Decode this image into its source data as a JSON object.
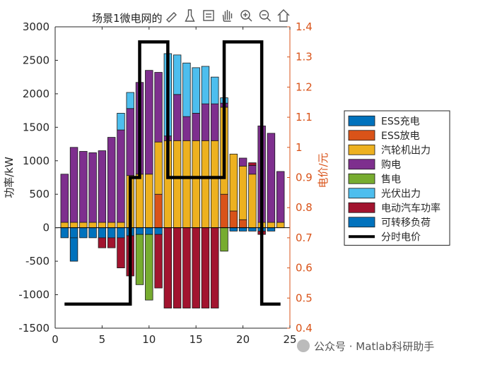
{
  "toolbar": {
    "icons": [
      "edit-icon",
      "brush-icon",
      "datatip-icon",
      "pan-icon",
      "zoom-in-icon",
      "zoom-out-icon",
      "home-icon"
    ]
  },
  "watermark": "公众号 · Matlab科研助手",
  "chart_data": {
    "type": "bar",
    "title": "场景1微电网的",
    "ylabel": "功率/kW",
    "y2label": "电价/元",
    "xlim": [
      0,
      25
    ],
    "ylim": [
      -1500,
      3000
    ],
    "y2lim": [
      0.4,
      1.4
    ],
    "xticks": [
      "0",
      "5",
      "10",
      "15",
      "20",
      "25"
    ],
    "yticks": [
      "-1500",
      "-1000",
      "-500",
      "0",
      "500",
      "1000",
      "1500",
      "2000",
      "2500",
      "3000"
    ],
    "y2ticks": [
      "0.4",
      "0.5",
      "0.6",
      "0.7",
      "0.8",
      "0.9",
      "1",
      "1.1",
      "1.2",
      "1.3",
      "1.4"
    ],
    "legend_position": "right",
    "x": [
      1,
      2,
      3,
      4,
      5,
      6,
      7,
      8,
      9,
      10,
      11,
      12,
      13,
      14,
      15,
      16,
      17,
      18,
      19,
      20,
      21,
      22,
      23,
      24
    ],
    "series": [
      {
        "name": "ESS充电",
        "color": "#0072BD",
        "values": [
          -150,
          -150,
          -150,
          -150,
          -150,
          -150,
          -150,
          -120,
          -100,
          -100,
          -100,
          0,
          0,
          0,
          0,
          0,
          0,
          0,
          -50,
          -50,
          -50,
          -50,
          -50,
          0
        ]
      },
      {
        "name": "ESS放电",
        "color": "#D95319",
        "values": [
          0,
          0,
          0,
          0,
          0,
          0,
          0,
          0,
          0,
          0,
          500,
          0,
          0,
          0,
          0,
          0,
          0,
          500,
          250,
          120,
          0,
          0,
          0,
          0
        ]
      },
      {
        "name": "汽轮机出力",
        "color": "#EDB120",
        "values": [
          80,
          80,
          80,
          80,
          80,
          80,
          80,
          780,
          800,
          800,
          780,
          1300,
          1300,
          1300,
          1300,
          1300,
          1300,
          1300,
          850,
          800,
          800,
          80,
          80,
          80
        ]
      },
      {
        "name": "购电",
        "color": "#7E2F8E",
        "values": [
          720,
          1120,
          1060,
          1040,
          1070,
          1270,
          1380,
          1000,
          1370,
          1550,
          1040,
          70,
          690,
          360,
          410,
          550,
          550,
          60,
          0,
          120,
          130,
          1440,
          1330,
          760
        ]
      },
      {
        "name": "售电",
        "color": "#77AC30",
        "values": [
          0,
          0,
          0,
          0,
          0,
          0,
          0,
          0,
          -750,
          -980,
          0,
          0,
          0,
          0,
          0,
          0,
          0,
          -350,
          0,
          0,
          0,
          0,
          0,
          0
        ]
      },
      {
        "name": "光伏出力",
        "color": "#4DBEEE",
        "values": [
          0,
          0,
          0,
          0,
          0,
          0,
          250,
          240,
          0,
          0,
          0,
          1230,
          590,
          800,
          680,
          560,
          400,
          80,
          0,
          0,
          0,
          0,
          0,
          0
        ]
      },
      {
        "name": "电动汽车功率",
        "color": "#A2142F",
        "values": [
          0,
          0,
          0,
          0,
          -150,
          -150,
          -450,
          -600,
          0,
          0,
          -800,
          -1200,
          -1200,
          -1200,
          -1200,
          -1200,
          -1200,
          0,
          0,
          0,
          40,
          -50,
          0,
          0
        ]
      },
      {
        "name": "可转移负荷",
        "color": "#0072BD",
        "values": [
          0,
          -350,
          0,
          0,
          0,
          0,
          0,
          0,
          0,
          0,
          0,
          0,
          0,
          0,
          0,
          0,
          0,
          0,
          0,
          0,
          0,
          0,
          0,
          0
        ]
      }
    ],
    "line_series": {
      "name": "分时电价",
      "color": "#000000",
      "axis": "right",
      "x": [
        1,
        8,
        8,
        9,
        9,
        12,
        12,
        18,
        18,
        22,
        22,
        24
      ],
      "y": [
        0.48,
        0.48,
        0.9,
        0.9,
        1.35,
        1.35,
        0.9,
        0.9,
        1.35,
        1.35,
        0.48,
        0.48
      ]
    }
  }
}
